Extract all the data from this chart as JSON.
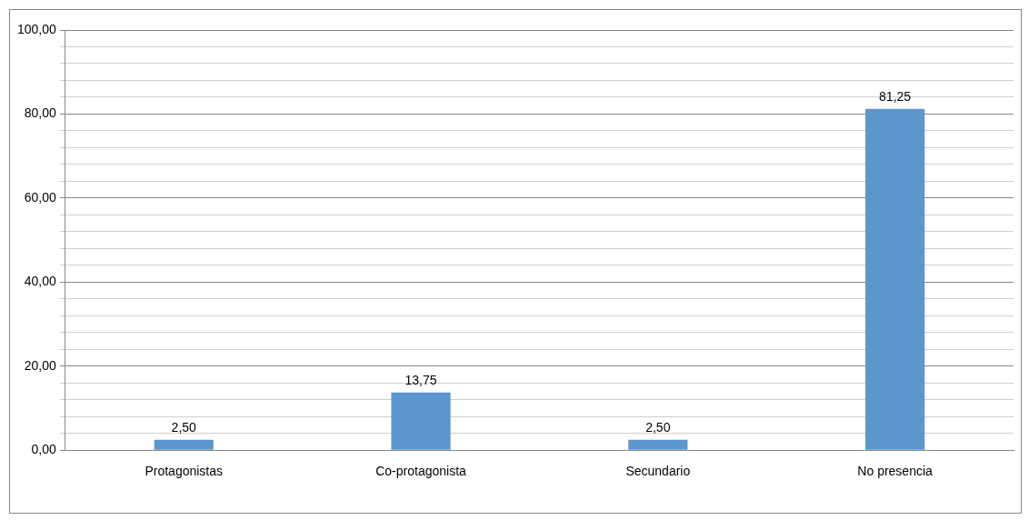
{
  "chart_data": {
    "type": "bar",
    "categories": [
      "Protagonistas",
      "Co-protagonista",
      "Secundario",
      "No presencia"
    ],
    "values": [
      2.5,
      13.75,
      2.5,
      81.25
    ],
    "color": "#5b97cc",
    "value_labels": [
      "2,50",
      "13,75",
      "2,50",
      "81,25"
    ],
    "ylim": [
      0,
      100
    ],
    "yticks": [
      {
        "value": 0,
        "label": "0,00"
      },
      {
        "value": 4,
        "label": null
      },
      {
        "value": 8,
        "label": null
      },
      {
        "value": 12,
        "label": null
      },
      {
        "value": 16,
        "label": null
      },
      {
        "value": 20,
        "label": "20,00"
      },
      {
        "value": 24,
        "label": null
      },
      {
        "value": 28,
        "label": null
      },
      {
        "value": 32,
        "label": null
      },
      {
        "value": 36,
        "label": null
      },
      {
        "value": 40,
        "label": "40,00"
      },
      {
        "value": 44,
        "label": null
      },
      {
        "value": 48,
        "label": null
      },
      {
        "value": 52,
        "label": null
      },
      {
        "value": 56,
        "label": null
      },
      {
        "value": 60,
        "label": "60,00"
      },
      {
        "value": 64,
        "label": null
      },
      {
        "value": 68,
        "label": null
      },
      {
        "value": 72,
        "label": null
      },
      {
        "value": 76,
        "label": null
      },
      {
        "value": 80,
        "label": "80,00"
      },
      {
        "value": 84,
        "label": null
      },
      {
        "value": 88,
        "label": null
      },
      {
        "value": 92,
        "label": null
      },
      {
        "value": 96,
        "label": null
      },
      {
        "value": 100,
        "label": "100,00"
      }
    ],
    "grid": "y",
    "legend": false
  }
}
